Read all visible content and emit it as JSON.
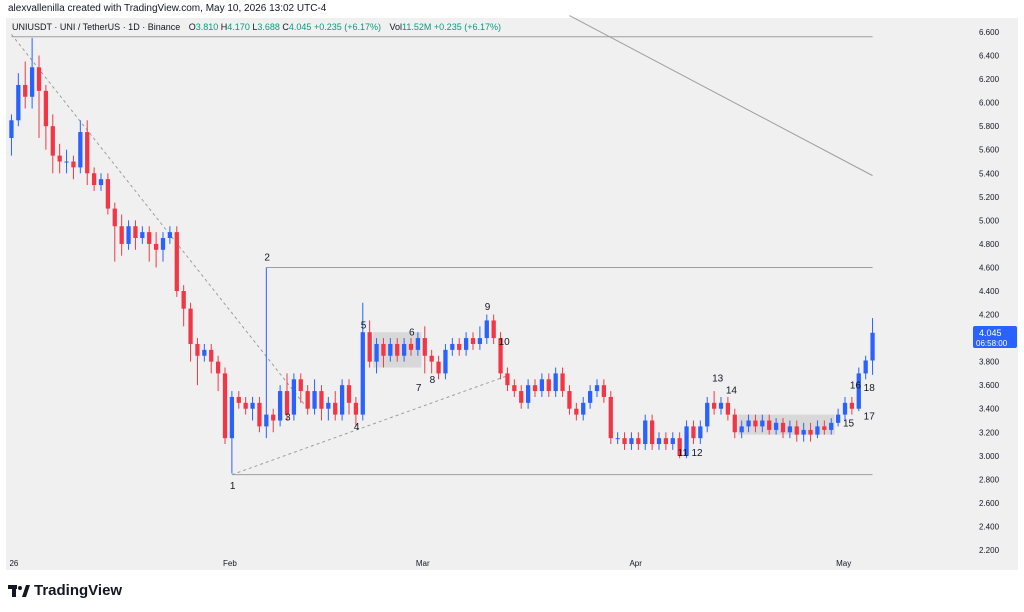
{
  "header": {
    "credit": "alexvallenilla created with TradingView.com, May 10, 2026 13:02 UTC-4"
  },
  "legend": {
    "symbol": "UNIUSDT · UNI / TetherUS · 1D · Binance",
    "open_label": "O",
    "open": "3.810",
    "high_label": "H",
    "high": "4.170",
    "low_label": "L",
    "low": "3.688",
    "close_label": "C",
    "close": "4.045",
    "change": "+0.235 (+6.17%)",
    "vol_label": "Vol",
    "vol": "11.52M",
    "vol_change": "+0.235 (+6.17%)"
  },
  "price_tag": {
    "value": "4.045",
    "countdown": "06:58:00"
  },
  "brand": {
    "name": "TradingView"
  },
  "colors": {
    "up": "#2962ff",
    "down": "#f23645",
    "tag": "#2962ff",
    "box": "#d3d3d3"
  },
  "chart_data": {
    "type": "candlestick",
    "symbol": "UNIUSDT",
    "timeframe": "1D",
    "ylim": [
      2.2,
      6.6
    ],
    "y_ticks": [
      "6.600",
      "6.400",
      "6.200",
      "6.000",
      "5.800",
      "5.600",
      "5.400",
      "5.200",
      "5.000",
      "4.800",
      "4.600",
      "4.400",
      "4.200",
      "4.000",
      "3.800",
      "3.600",
      "3.400",
      "3.200",
      "3.000",
      "2.800",
      "2.600",
      "2.400",
      "2.200"
    ],
    "x_ticks": [
      {
        "label": "26",
        "index": 0
      },
      {
        "label": "Feb",
        "index": 31
      },
      {
        "label": "Mar",
        "index": 59
      },
      {
        "label": "Apr",
        "index": 90
      },
      {
        "label": "May",
        "index": 120
      }
    ],
    "candles": [
      [
        5.7,
        5.85,
        5.55,
        5.9
      ],
      [
        5.85,
        6.15,
        5.8,
        6.25
      ],
      [
        6.15,
        6.05,
        5.95,
        6.35
      ],
      [
        6.05,
        6.3,
        5.95,
        6.55
      ],
      [
        6.3,
        6.1,
        5.7,
        6.4
      ],
      [
        6.1,
        5.8,
        5.6,
        6.15
      ],
      [
        5.8,
        5.55,
        5.4,
        5.9
      ],
      [
        5.55,
        5.5,
        5.4,
        5.65
      ],
      [
        5.5,
        5.5,
        5.4,
        5.6
      ],
      [
        5.5,
        5.45,
        5.35,
        5.55
      ],
      [
        5.45,
        5.75,
        5.4,
        5.85
      ],
      [
        5.75,
        5.4,
        5.3,
        5.85
      ],
      [
        5.4,
        5.3,
        5.25,
        5.45
      ],
      [
        5.3,
        5.35,
        5.25,
        5.4
      ],
      [
        5.35,
        5.1,
        5.05,
        5.4
      ],
      [
        5.1,
        4.95,
        4.65,
        5.15
      ],
      [
        4.95,
        4.8,
        4.7,
        5.05
      ],
      [
        4.8,
        4.95,
        4.75,
        5.0
      ],
      [
        4.95,
        4.85,
        4.75,
        5.0
      ],
      [
        4.85,
        4.9,
        4.8,
        4.95
      ],
      [
        4.9,
        4.8,
        4.65,
        4.95
      ],
      [
        4.8,
        4.75,
        4.6,
        4.9
      ],
      [
        4.75,
        4.85,
        4.65,
        4.9
      ],
      [
        4.85,
        4.9,
        4.8,
        4.95
      ],
      [
        4.9,
        4.4,
        4.35,
        4.95
      ],
      [
        4.4,
        4.25,
        4.1,
        4.45
      ],
      [
        4.25,
        3.95,
        3.8,
        4.3
      ],
      [
        3.95,
        3.85,
        3.6,
        4.0
      ],
      [
        3.85,
        3.9,
        3.8,
        3.95
      ],
      [
        3.9,
        3.8,
        3.7,
        3.95
      ],
      [
        3.8,
        3.7,
        3.55,
        3.85
      ],
      [
        3.7,
        3.15,
        3.1,
        3.75
      ],
      [
        3.15,
        3.5,
        2.85,
        3.55
      ],
      [
        3.5,
        3.45,
        3.4,
        3.55
      ],
      [
        3.45,
        3.4,
        3.35,
        3.5
      ],
      [
        3.4,
        3.45,
        3.3,
        3.5
      ],
      [
        3.45,
        3.25,
        3.2,
        3.5
      ],
      [
        3.25,
        3.35,
        3.15,
        4.6
      ],
      [
        3.35,
        3.3,
        3.2,
        3.4
      ],
      [
        3.3,
        3.55,
        3.25,
        3.6
      ],
      [
        3.55,
        3.35,
        3.3,
        3.7
      ],
      [
        3.35,
        3.65,
        3.3,
        3.7
      ],
      [
        3.65,
        3.55,
        3.45,
        3.7
      ],
      [
        3.55,
        3.4,
        3.35,
        3.6
      ],
      [
        3.4,
        3.55,
        3.35,
        3.65
      ],
      [
        3.55,
        3.4,
        3.3,
        3.6
      ],
      [
        3.4,
        3.45,
        3.3,
        3.5
      ],
      [
        3.45,
        3.35,
        3.3,
        3.55
      ],
      [
        3.35,
        3.6,
        3.3,
        3.65
      ],
      [
        3.6,
        3.45,
        3.35,
        3.65
      ],
      [
        3.45,
        3.35,
        3.25,
        3.5
      ],
      [
        3.35,
        4.05,
        3.3,
        4.3
      ],
      [
        4.05,
        3.8,
        3.75,
        4.15
      ],
      [
        3.8,
        3.95,
        3.7,
        4.0
      ],
      [
        3.95,
        3.85,
        3.75,
        4.0
      ],
      [
        3.85,
        3.95,
        3.8,
        4.0
      ],
      [
        3.95,
        3.85,
        3.8,
        4.0
      ],
      [
        3.85,
        3.95,
        3.8,
        4.0
      ],
      [
        3.95,
        3.9,
        3.85,
        4.0
      ],
      [
        3.9,
        4.0,
        3.85,
        4.05
      ],
      [
        4.0,
        3.85,
        3.7,
        4.1
      ],
      [
        3.85,
        3.8,
        3.7,
        3.9
      ],
      [
        3.8,
        3.7,
        3.65,
        3.85
      ],
      [
        3.7,
        3.9,
        3.65,
        3.95
      ],
      [
        3.9,
        3.95,
        3.85,
        4.0
      ],
      [
        3.95,
        3.9,
        3.85,
        4.0
      ],
      [
        3.9,
        4.0,
        3.85,
        4.05
      ],
      [
        4.0,
        3.95,
        3.9,
        4.05
      ],
      [
        3.95,
        4.0,
        3.9,
        4.1
      ],
      [
        4.0,
        4.15,
        3.95,
        4.2
      ],
      [
        4.15,
        4.0,
        3.95,
        4.2
      ],
      [
        4.0,
        3.7,
        3.65,
        4.05
      ],
      [
        3.7,
        3.6,
        3.55,
        3.75
      ],
      [
        3.6,
        3.55,
        3.5,
        3.65
      ],
      [
        3.55,
        3.45,
        3.4,
        3.6
      ],
      [
        3.45,
        3.6,
        3.4,
        3.65
      ],
      [
        3.6,
        3.55,
        3.5,
        3.65
      ],
      [
        3.55,
        3.65,
        3.5,
        3.7
      ],
      [
        3.65,
        3.55,
        3.5,
        3.7
      ],
      [
        3.55,
        3.7,
        3.5,
        3.75
      ],
      [
        3.7,
        3.55,
        3.5,
        3.75
      ],
      [
        3.55,
        3.4,
        3.35,
        3.6
      ],
      [
        3.4,
        3.35,
        3.3,
        3.45
      ],
      [
        3.35,
        3.45,
        3.3,
        3.5
      ],
      [
        3.45,
        3.55,
        3.4,
        3.6
      ],
      [
        3.55,
        3.6,
        3.5,
        3.65
      ],
      [
        3.6,
        3.5,
        3.45,
        3.65
      ],
      [
        3.5,
        3.15,
        3.1,
        3.55
      ],
      [
        3.15,
        3.15,
        3.1,
        3.2
      ],
      [
        3.15,
        3.1,
        3.05,
        3.2
      ],
      [
        3.1,
        3.15,
        3.05,
        3.2
      ],
      [
        3.15,
        3.1,
        3.05,
        3.2
      ],
      [
        3.1,
        3.3,
        3.05,
        3.35
      ],
      [
        3.3,
        3.1,
        3.05,
        3.35
      ],
      [
        3.1,
        3.15,
        3.05,
        3.2
      ],
      [
        3.15,
        3.1,
        3.05,
        3.2
      ],
      [
        3.1,
        3.15,
        3.05,
        3.2
      ],
      [
        3.15,
        3.0,
        2.98,
        3.2
      ],
      [
        3.0,
        3.25,
        2.98,
        3.3
      ],
      [
        3.25,
        3.15,
        3.1,
        3.3
      ],
      [
        3.15,
        3.25,
        3.1,
        3.3
      ],
      [
        3.25,
        3.45,
        3.2,
        3.5
      ],
      [
        3.45,
        3.4,
        3.35,
        3.55
      ],
      [
        3.4,
        3.45,
        3.35,
        3.5
      ],
      [
        3.45,
        3.35,
        3.3,
        3.5
      ],
      [
        3.35,
        3.2,
        3.15,
        3.4
      ],
      [
        3.2,
        3.25,
        3.15,
        3.3
      ],
      [
        3.25,
        3.3,
        3.2,
        3.35
      ],
      [
        3.3,
        3.25,
        3.2,
        3.35
      ],
      [
        3.25,
        3.3,
        3.2,
        3.35
      ],
      [
        3.3,
        3.22,
        3.18,
        3.35
      ],
      [
        3.22,
        3.28,
        3.18,
        3.32
      ],
      [
        3.28,
        3.2,
        3.15,
        3.32
      ],
      [
        3.2,
        3.25,
        3.15,
        3.3
      ],
      [
        3.25,
        3.18,
        3.12,
        3.3
      ],
      [
        3.18,
        3.22,
        3.12,
        3.28
      ],
      [
        3.22,
        3.18,
        3.12,
        3.28
      ],
      [
        3.18,
        3.25,
        3.15,
        3.3
      ],
      [
        3.25,
        3.22,
        3.18,
        3.3
      ],
      [
        3.22,
        3.28,
        3.18,
        3.32
      ],
      [
        3.28,
        3.35,
        3.25,
        3.4
      ],
      [
        3.35,
        3.45,
        3.3,
        3.5
      ],
      [
        3.45,
        3.4,
        3.35,
        3.5
      ],
      [
        3.4,
        3.7,
        3.38,
        3.75
      ],
      [
        3.7,
        3.81,
        3.65,
        3.85
      ],
      [
        3.81,
        4.045,
        3.688,
        4.17
      ]
    ],
    "labels": [
      {
        "text": "1",
        "index": 32,
        "price": 2.72
      },
      {
        "text": "2",
        "index": 37,
        "price": 4.66
      },
      {
        "text": "3",
        "index": 40,
        "price": 3.3
      },
      {
        "text": "4",
        "index": 50,
        "price": 3.22
      },
      {
        "text": "5",
        "index": 51,
        "price": 4.08
      },
      {
        "text": "6",
        "index": 58,
        "price": 4.02
      },
      {
        "text": "7",
        "index": 59,
        "price": 3.55
      },
      {
        "text": "8",
        "index": 61,
        "price": 3.62
      },
      {
        "text": "9",
        "index": 69,
        "price": 4.24
      },
      {
        "text": "10",
        "index": 71,
        "price": 3.94
      },
      {
        "text": "11",
        "index": 97,
        "price": 3.0
      },
      {
        "text": "12",
        "index": 99,
        "price": 3.0
      },
      {
        "text": "13",
        "index": 102,
        "price": 3.63
      },
      {
        "text": "14",
        "index": 104,
        "price": 3.53
      },
      {
        "text": "15",
        "index": 121,
        "price": 3.25
      },
      {
        "text": "16",
        "index": 122,
        "price": 3.57
      },
      {
        "text": "17",
        "index": 124,
        "price": 3.31
      },
      {
        "text": "18",
        "index": 124,
        "price": 3.55
      }
    ],
    "lines": [
      {
        "style": "solid",
        "from": [
          37,
          4.6
        ],
        "to": [
          125,
          4.6
        ]
      },
      {
        "style": "solid",
        "from": [
          32,
          2.84
        ],
        "to": [
          125,
          2.84
        ]
      },
      {
        "style": "solid",
        "from": [
          0,
          6.56
        ],
        "to": [
          125,
          6.56
        ]
      },
      {
        "style": "solid",
        "from": [
          81,
          6.74
        ],
        "to": [
          125,
          5.38
        ]
      },
      {
        "style": "dashed",
        "from": [
          0,
          6.58
        ],
        "to": [
          43,
          3.4
        ]
      },
      {
        "style": "dashed",
        "from": [
          32,
          2.84
        ],
        "to": [
          72,
          3.68
        ]
      }
    ],
    "boxes": [
      {
        "x0": 53,
        "x1": 59,
        "y0": 3.75,
        "y1": 4.05
      },
      {
        "x0": 106,
        "x1": 119,
        "y0": 3.18,
        "y1": 3.35
      }
    ]
  }
}
